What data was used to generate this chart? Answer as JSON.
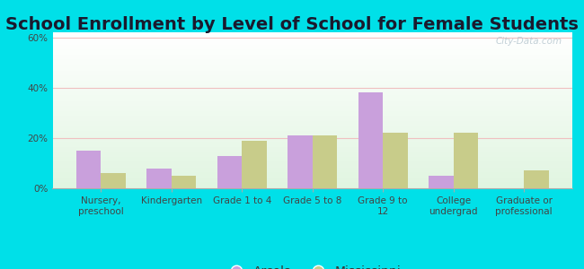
{
  "title": "School Enrollment by Level of School for Female Students",
  "categories": [
    "Nursery,\npreschool",
    "Kindergarten",
    "Grade 1 to 4",
    "Grade 5 to 8",
    "Grade 9 to\n12",
    "College\nundergrad",
    "Graduate or\nprofessional"
  ],
  "arcola": [
    15,
    8,
    13,
    21,
    38,
    5,
    0
  ],
  "mississippi": [
    6,
    5,
    19,
    21,
    22,
    22,
    7
  ],
  "arcola_color": "#c9a0dc",
  "mississippi_color": "#c8cc8a",
  "background_outer": "#00e0e8",
  "ylim": [
    0,
    62
  ],
  "yticks": [
    0,
    20,
    40,
    60
  ],
  "ytick_labels": [
    "0%",
    "20%",
    "40%",
    "60%"
  ],
  "bar_width": 0.35,
  "title_fontsize": 14,
  "tick_fontsize": 7.5,
  "legend_fontsize": 10,
  "watermark": "City-Data.com"
}
